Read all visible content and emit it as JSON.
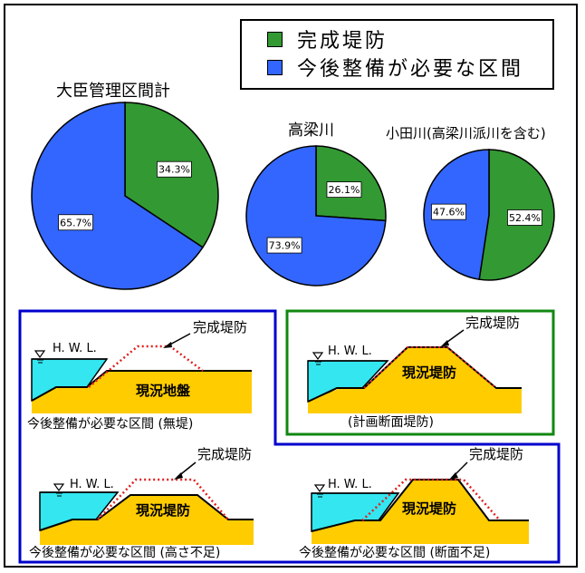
{
  "legend": {
    "completed_label": "完成堤防",
    "needed_label": "今後整備が必要な区間",
    "completed_color": "#339933",
    "needed_color": "#3366ff"
  },
  "chart_data": [
    {
      "type": "pie",
      "title": "大臣管理区間計",
      "slices": [
        {
          "name": "完成堤防",
          "value": 34.3,
          "label": "34.3%",
          "color": "#339933"
        },
        {
          "name": "今後整備が必要な区間",
          "value": 65.7,
          "label": "65.7%",
          "color": "#3366ff"
        }
      ]
    },
    {
      "type": "pie",
      "title": "高梁川",
      "slices": [
        {
          "name": "完成堤防",
          "value": 26.1,
          "label": "26.1%",
          "color": "#339933"
        },
        {
          "name": "今後整備が必要な区間",
          "value": 73.9,
          "label": "73.9%",
          "color": "#3366ff"
        }
      ]
    },
    {
      "type": "pie",
      "title": "小田川(高梁川派川を含む)",
      "slices": [
        {
          "name": "完成堤防",
          "value": 52.4,
          "label": "52.4%",
          "color": "#339933"
        },
        {
          "name": "今後整備が必要な区間",
          "value": 47.6,
          "label": "47.6%",
          "color": "#3366ff"
        }
      ]
    }
  ],
  "diagrams": {
    "hwl_label": "H. W. L.",
    "completed_levee_label": "完成堤防",
    "panel_no_levee": {
      "body_label": "現況地盤",
      "caption": "今後整備が必要な区間 (無堤)"
    },
    "panel_planned": {
      "body_label": "現況堤防",
      "caption": "(計画断面堤防)"
    },
    "panel_height": {
      "body_label": "現況堤防",
      "caption": "今後整備が必要な区間 (高さ不足)"
    },
    "panel_section": {
      "body_label": "現況堤防",
      "caption": "今後整備が必要な区間 (断面不足)"
    },
    "water_color": "#33e6f0",
    "ground_color": "#ffcc00",
    "design_line_color": "#e02020",
    "needed_frame_color": "#0000cc",
    "completed_frame_color": "#118811"
  }
}
